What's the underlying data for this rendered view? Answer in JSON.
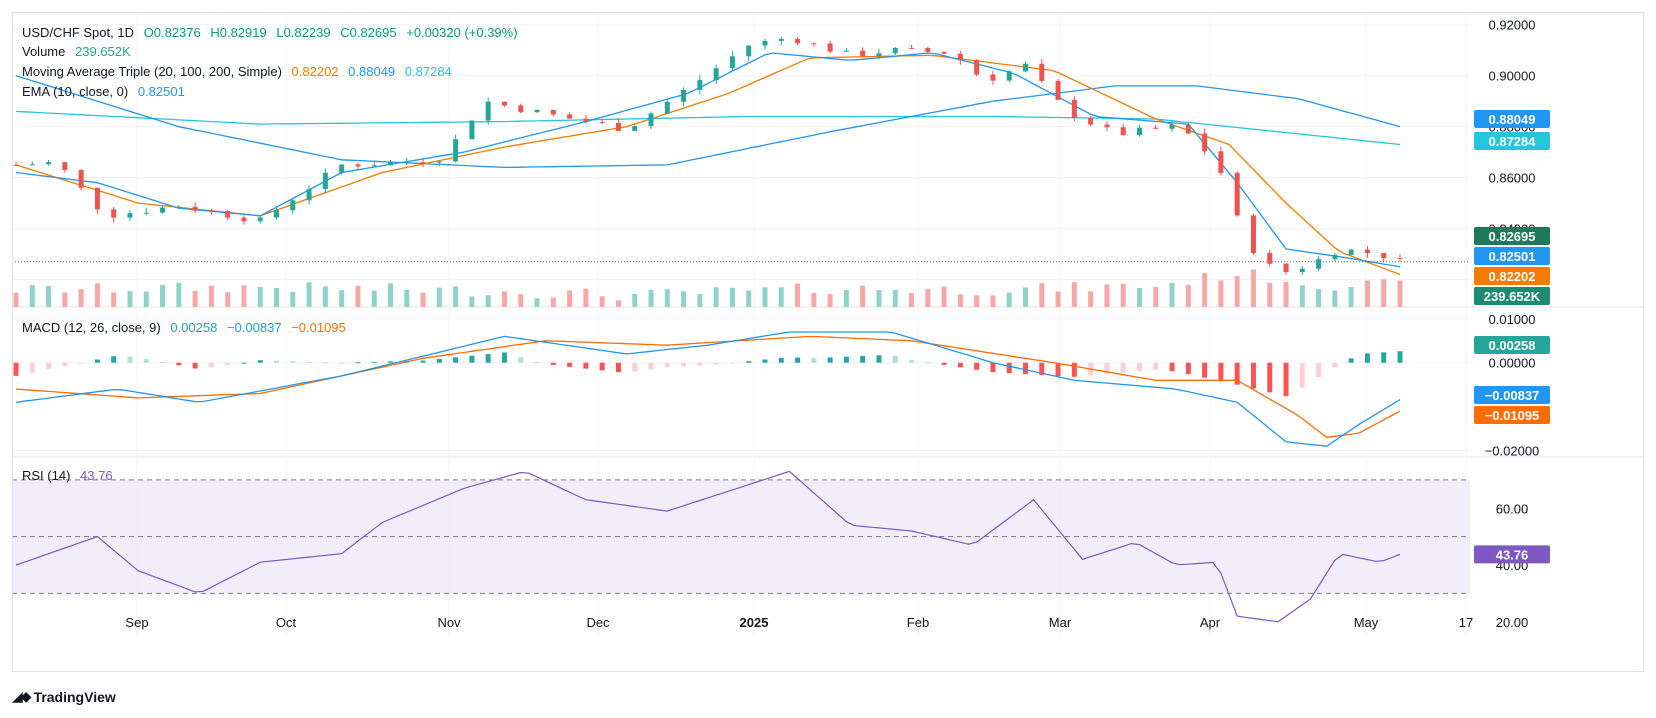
{
  "header": {
    "symbol": "USD/CHF Spot, 1D",
    "open": "O0.82376",
    "high": "H0.82919",
    "low": "L0.82239",
    "close": "C0.82695",
    "change": "+0.00320 (+0.39%)"
  },
  "legends": {
    "volume_label": "Volume",
    "volume_value": "239.652K",
    "ma_label": "Moving Average Triple (20, 100, 200, Simple)",
    "ma20": "0.82202",
    "ma100": "0.88049",
    "ma200": "0.87284",
    "ema_label": "EMA (10, close, 0)",
    "ema_value": "0.82501",
    "macd_label": "MACD (12, 26, close, 9)",
    "macd_hist": "0.00258",
    "macd_line": "−0.00837",
    "macd_signal": "−0.01095",
    "rsi_label": "RSI (14)",
    "rsi_value": "43.76"
  },
  "colors": {
    "up": "#26a69a",
    "down": "#ef5350",
    "ma20": "#f57c00",
    "ema": "#2196f3",
    "ma100": "#2196f3",
    "ma200": "#26c6da",
    "rsi": "#7e57c2",
    "macd_signal": "#ff6d00"
  },
  "branding": "TradingView",
  "chart_data": [
    {
      "type": "candlestick",
      "title": "USD/CHF Spot, 1D",
      "x_tick_labels": [
        "Sep",
        "Oct",
        "Nov",
        "Dec",
        "2025",
        "Feb",
        "Mar",
        "Apr",
        "May",
        "17"
      ],
      "y_tick_labels": [
        "0.92000",
        "0.90000",
        "0.88000",
        "0.86000",
        "0.84000",
        "0.82000"
      ],
      "ylim": [
        0.81,
        0.925
      ],
      "price_badges": [
        {
          "label": "0.88049",
          "value": 0.88049,
          "color": "#2196f3"
        },
        {
          "label": "0.87284",
          "value": 0.87284,
          "color": "#26c6da"
        },
        {
          "label": "0.82695",
          "value": 0.82695,
          "color": "#26a69a"
        },
        {
          "label": "0.82501",
          "value": 0.82501,
          "color": "#2196f3"
        },
        {
          "label": "0.82202",
          "value": 0.82202,
          "color": "#f57c00"
        }
      ],
      "close_series_keypoints": [
        [
          0,
          0.865
        ],
        [
          10,
          0.866
        ],
        [
          22,
          0.845
        ],
        [
          40,
          0.849
        ],
        [
          60,
          0.843
        ],
        [
          80,
          0.865
        ],
        [
          95,
          0.866
        ],
        [
          105,
          0.868
        ],
        [
          115,
          0.89
        ],
        [
          130,
          0.885
        ],
        [
          150,
          0.879
        ],
        [
          165,
          0.895
        ],
        [
          180,
          0.912
        ],
        [
          190,
          0.915
        ],
        [
          205,
          0.908
        ],
        [
          215,
          0.91
        ],
        [
          230,
          0.909
        ],
        [
          238,
          0.898
        ],
        [
          248,
          0.904
        ],
        [
          258,
          0.886
        ],
        [
          270,
          0.877
        ],
        [
          285,
          0.88
        ],
        [
          290,
          0.875
        ],
        [
          296,
          0.862
        ],
        [
          302,
          0.835
        ],
        [
          310,
          0.822
        ],
        [
          318,
          0.826
        ],
        [
          325,
          0.832
        ],
        [
          335,
          0.83
        ],
        [
          340,
          0.827
        ]
      ],
      "ema10_keypoints": [
        [
          0,
          0.862
        ],
        [
          20,
          0.858
        ],
        [
          40,
          0.848
        ],
        [
          60,
          0.845
        ],
        [
          80,
          0.862
        ],
        [
          110,
          0.87
        ],
        [
          140,
          0.882
        ],
        [
          165,
          0.893
        ],
        [
          185,
          0.909
        ],
        [
          205,
          0.906
        ],
        [
          225,
          0.909
        ],
        [
          245,
          0.901
        ],
        [
          265,
          0.884
        ],
        [
          288,
          0.881
        ],
        [
          300,
          0.858
        ],
        [
          312,
          0.832
        ],
        [
          325,
          0.829
        ],
        [
          340,
          0.825
        ]
      ],
      "ma20_keypoints": [
        [
          0,
          0.865
        ],
        [
          30,
          0.85
        ],
        [
          60,
          0.845
        ],
        [
          90,
          0.862
        ],
        [
          120,
          0.872
        ],
        [
          150,
          0.88
        ],
        [
          175,
          0.893
        ],
        [
          195,
          0.907
        ],
        [
          225,
          0.908
        ],
        [
          255,
          0.902
        ],
        [
          280,
          0.883
        ],
        [
          298,
          0.873
        ],
        [
          312,
          0.85
        ],
        [
          325,
          0.831
        ],
        [
          340,
          0.822
        ]
      ],
      "ma100_keypoints": [
        [
          0,
          0.9
        ],
        [
          40,
          0.88
        ],
        [
          80,
          0.867
        ],
        [
          120,
          0.864
        ],
        [
          160,
          0.865
        ],
        [
          200,
          0.878
        ],
        [
          240,
          0.89
        ],
        [
          270,
          0.896
        ],
        [
          290,
          0.896
        ],
        [
          315,
          0.891
        ],
        [
          340,
          0.88
        ]
      ],
      "ma200_keypoints": [
        [
          0,
          0.886
        ],
        [
          60,
          0.881
        ],
        [
          120,
          0.882
        ],
        [
          180,
          0.884
        ],
        [
          240,
          0.884
        ],
        [
          280,
          0.883
        ],
        [
          310,
          0.878
        ],
        [
          340,
          0.873
        ]
      ]
    },
    {
      "type": "bar",
      "title": "Volume",
      "value_label": "239.652K",
      "volume_profile_keypoints": [
        [
          0,
          0.4
        ],
        [
          60,
          0.5
        ],
        [
          120,
          0.35
        ],
        [
          150,
          0.2
        ],
        [
          160,
          0.25
        ],
        [
          200,
          0.45
        ],
        [
          240,
          0.4
        ],
        [
          280,
          0.55
        ],
        [
          300,
          1.0
        ],
        [
          320,
          0.6
        ],
        [
          340,
          0.55
        ]
      ]
    },
    {
      "type": "line",
      "title": "MACD (12, 26, close, 9)",
      "y_tick_labels": [
        "0.01000",
        "0.00000",
        "−0.02000"
      ],
      "ylim": [
        -0.021,
        0.012
      ],
      "macd_keypoints": [
        [
          0,
          -0.009
        ],
        [
          25,
          -0.006
        ],
        [
          45,
          -0.009
        ],
        [
          80,
          -0.003
        ],
        [
          120,
          0.006
        ],
        [
          150,
          0.002
        ],
        [
          170,
          0.004
        ],
        [
          190,
          0.007
        ],
        [
          215,
          0.007
        ],
        [
          240,
          0.0
        ],
        [
          260,
          -0.004
        ],
        [
          285,
          -0.006
        ],
        [
          300,
          -0.009
        ],
        [
          312,
          -0.018
        ],
        [
          322,
          -0.019
        ],
        [
          330,
          -0.014
        ],
        [
          340,
          -0.0084
        ]
      ],
      "signal_keypoints": [
        [
          0,
          -0.006
        ],
        [
          30,
          -0.008
        ],
        [
          60,
          -0.007
        ],
        [
          100,
          0.001
        ],
        [
          130,
          0.005
        ],
        [
          160,
          0.004
        ],
        [
          195,
          0.006
        ],
        [
          220,
          0.005
        ],
        [
          255,
          0.0
        ],
        [
          280,
          -0.004
        ],
        [
          300,
          -0.004
        ],
        [
          315,
          -0.012
        ],
        [
          322,
          -0.017
        ],
        [
          330,
          -0.016
        ],
        [
          340,
          -0.011
        ]
      ],
      "legend_values": {
        "histogram": 0.00258,
        "macd": -0.00837,
        "signal": -0.01095
      }
    },
    {
      "type": "line",
      "title": "RSI (14)",
      "y_tick_labels": [
        "60.00",
        "40.00",
        "20.00"
      ],
      "ylim": [
        15,
        77
      ],
      "bands": [
        70,
        50,
        30
      ],
      "rsi_keypoints": [
        [
          0,
          40
        ],
        [
          20,
          50
        ],
        [
          30,
          38
        ],
        [
          45,
          30
        ],
        [
          60,
          41
        ],
        [
          80,
          44
        ],
        [
          90,
          55
        ],
        [
          110,
          67
        ],
        [
          125,
          73
        ],
        [
          140,
          63
        ],
        [
          160,
          59
        ],
        [
          175,
          66
        ],
        [
          190,
          73
        ],
        [
          205,
          54
        ],
        [
          220,
          52
        ],
        [
          235,
          47
        ],
        [
          250,
          63
        ],
        [
          262,
          42
        ],
        [
          275,
          48
        ],
        [
          285,
          40
        ],
        [
          295,
          41
        ],
        [
          300,
          22
        ],
        [
          310,
          20
        ],
        [
          318,
          28
        ],
        [
          325,
          44
        ],
        [
          335,
          41
        ],
        [
          340,
          43.76
        ]
      ]
    }
  ]
}
